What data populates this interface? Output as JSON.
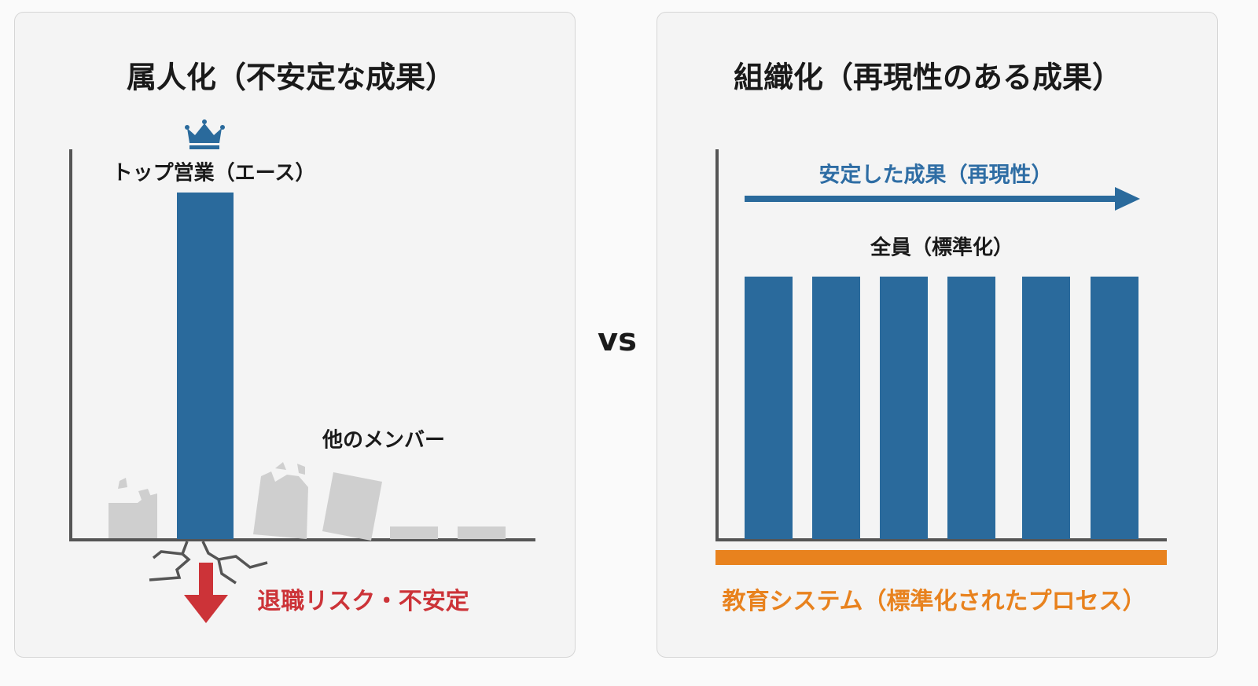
{
  "left": {
    "title": "属人化（不安定な成果）",
    "ace_label": "トップ営業（エース）",
    "others_label": "他のメンバー",
    "risk_label": "退職リスク・不安定"
  },
  "vs_label": "VS",
  "right": {
    "title": "組織化（再現性のある成果）",
    "arrow_label": "安定した成果（再現性）",
    "bars_label": "全員（標準化）",
    "foundation_label": "教育システム（標準化されたプロセス）"
  },
  "colors": {
    "bar_blue": "#2a6a9c",
    "risk_red": "#cc3338",
    "foundation_orange": "#e8821e",
    "axis": "#555555",
    "gray_bar": "#cfcfcf"
  },
  "chart_data": {
    "type": "bar",
    "left_relative_heights": {
      "ace": 1.0,
      "others": [
        0.1,
        0.2,
        0.18,
        0.04,
        0.04
      ]
    },
    "right_relative_heights": [
      1,
      1,
      1,
      1,
      1,
      1
    ]
  }
}
